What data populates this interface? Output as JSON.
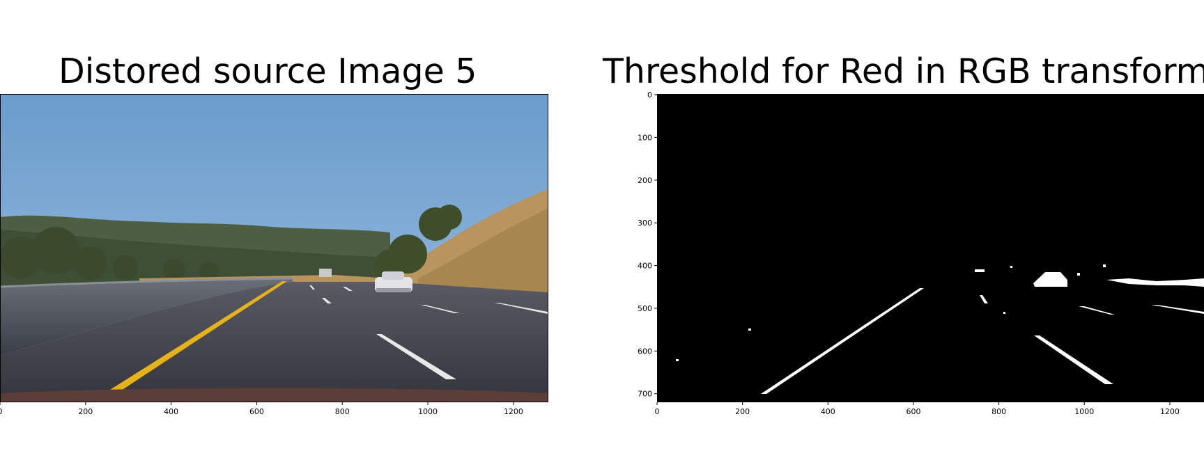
{
  "left_panel": {
    "title": "Distored source Image 5",
    "x_ticks": [
      "0",
      "200",
      "400",
      "600",
      "800",
      "1000",
      "1200"
    ]
  },
  "right_panel": {
    "title": "Threshold for Red in RGB transform",
    "x_ticks": [
      "0",
      "200",
      "400",
      "600",
      "800",
      "1000",
      "1200"
    ],
    "y_ticks": [
      "0",
      "100",
      "200",
      "300",
      "400",
      "500",
      "600",
      "700"
    ]
  },
  "colors": {
    "sky": "#6b9ccc",
    "road": "#3f3f49",
    "lane_yellow": "#e6b21a",
    "hills": "#4e5e42",
    "dry_grass": "#b8955e",
    "threshold_bg": "#000000",
    "threshold_fg": "#ffffff"
  }
}
